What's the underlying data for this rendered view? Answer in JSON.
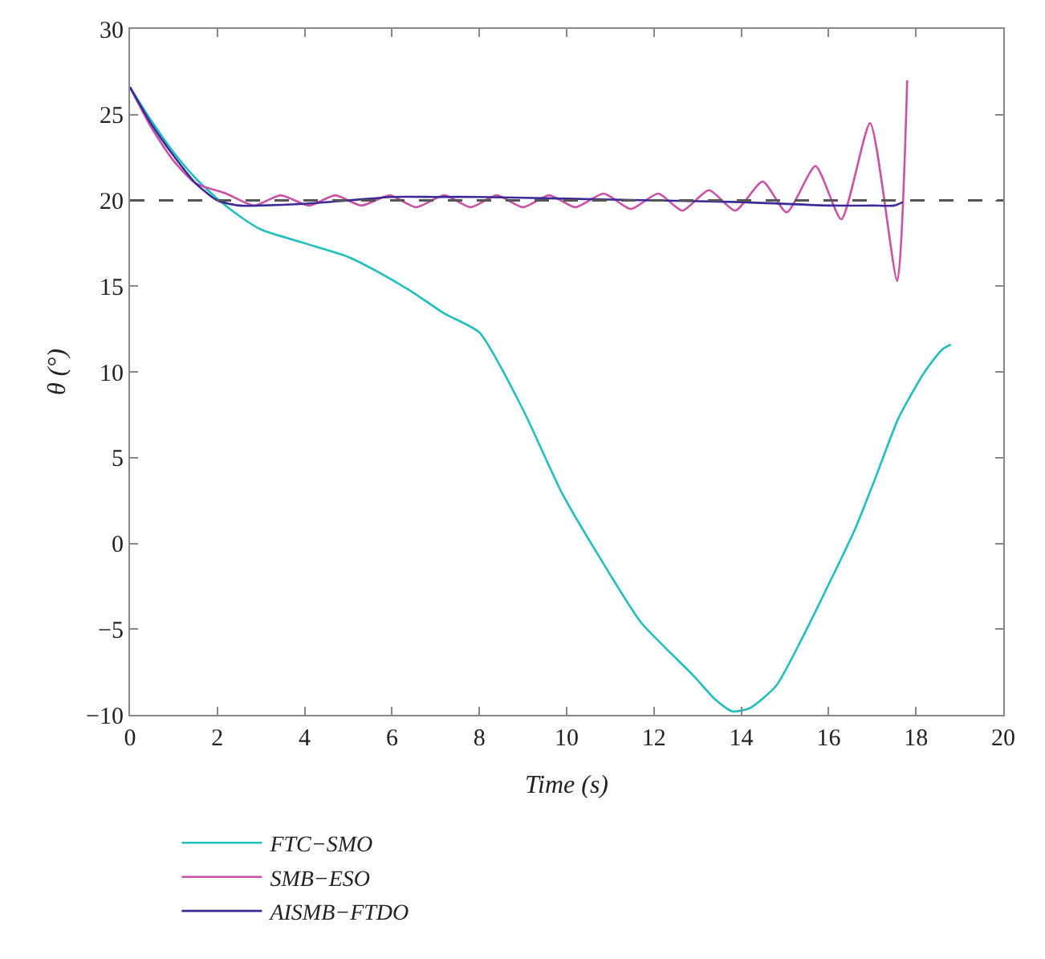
{
  "chart_data": {
    "type": "line",
    "xlabel": "Time (s)",
    "ylabel": "θ (°)",
    "xlim": [
      0,
      20
    ],
    "xticks": [
      0,
      2,
      4,
      6,
      8,
      10,
      12,
      14,
      16,
      18,
      20
    ],
    "ylim": [
      -10,
      30
    ],
    "yticks": [
      -10,
      -5,
      0,
      5,
      10,
      15,
      20,
      25,
      30
    ],
    "legend": "bottom left",
    "marker": "none",
    "line_style": "solid",
    "ref_lines": [
      {
        "axis": "y",
        "value": 20,
        "color": "#555555",
        "line_style": "dashed"
      }
    ],
    "series": [
      {
        "name": "FTC−SMO",
        "color": "#1fbfbf",
        "x": [
          0,
          0.5,
          1,
          1.5,
          2,
          2.5,
          3,
          4,
          5,
          5.7,
          6.5,
          7.2,
          8,
          9,
          9.9,
          10.8,
          11.7,
          12.9,
          13.4,
          13.8,
          14.2,
          14.8,
          15.4,
          16,
          16.6,
          17.1,
          17.6,
          18.2,
          18.6,
          18.8
        ],
        "values": [
          26.6,
          24.6,
          22.8,
          21.3,
          20.1,
          19.1,
          18.3,
          17.5,
          16.7,
          15.8,
          14.6,
          13.4,
          12.3,
          7.8,
          2.9,
          -1.0,
          -4.6,
          -7.7,
          -9.1,
          -9.8,
          -9.6,
          -8.3,
          -5.5,
          -2.4,
          0.8,
          4.0,
          7.3,
          10.0,
          11.3,
          11.6
        ]
      },
      {
        "name": "SMB−ESO",
        "color": "#cc4fa8",
        "x": [
          0,
          0.5,
          1,
          1.5,
          2.2,
          2.85,
          3.45,
          4.1,
          4.7,
          5.3,
          5.95,
          6.55,
          7.2,
          7.8,
          8.4,
          9.0,
          9.6,
          10.2,
          10.85,
          11.47,
          12.1,
          12.65,
          13.26,
          13.86,
          14.49,
          15.04,
          15.7,
          16.29,
          16.95,
          17.57,
          17.8
        ],
        "values": [
          26.6,
          24.2,
          22.3,
          21.0,
          20.4,
          19.7,
          20.3,
          19.7,
          20.3,
          19.7,
          20.3,
          19.6,
          20.3,
          19.6,
          20.3,
          19.6,
          20.3,
          19.6,
          20.4,
          19.5,
          20.4,
          19.4,
          20.6,
          19.4,
          21.1,
          19.3,
          22.0,
          18.9,
          24.5,
          15.3,
          27.0
        ]
      },
      {
        "name": "AISMB−FTDO",
        "color": "#3a2a96",
        "x": [
          0,
          0.5,
          1,
          1.5,
          2,
          2.5,
          3,
          4,
          5,
          6,
          7,
          8,
          10,
          12,
          14,
          16,
          17,
          17.5,
          17.7
        ],
        "values": [
          26.6,
          24.4,
          22.6,
          21.0,
          20.0,
          19.7,
          19.7,
          19.8,
          20.0,
          20.2,
          20.2,
          20.2,
          20.1,
          20.0,
          19.9,
          19.7,
          19.7,
          19.7,
          19.9
        ]
      }
    ]
  }
}
